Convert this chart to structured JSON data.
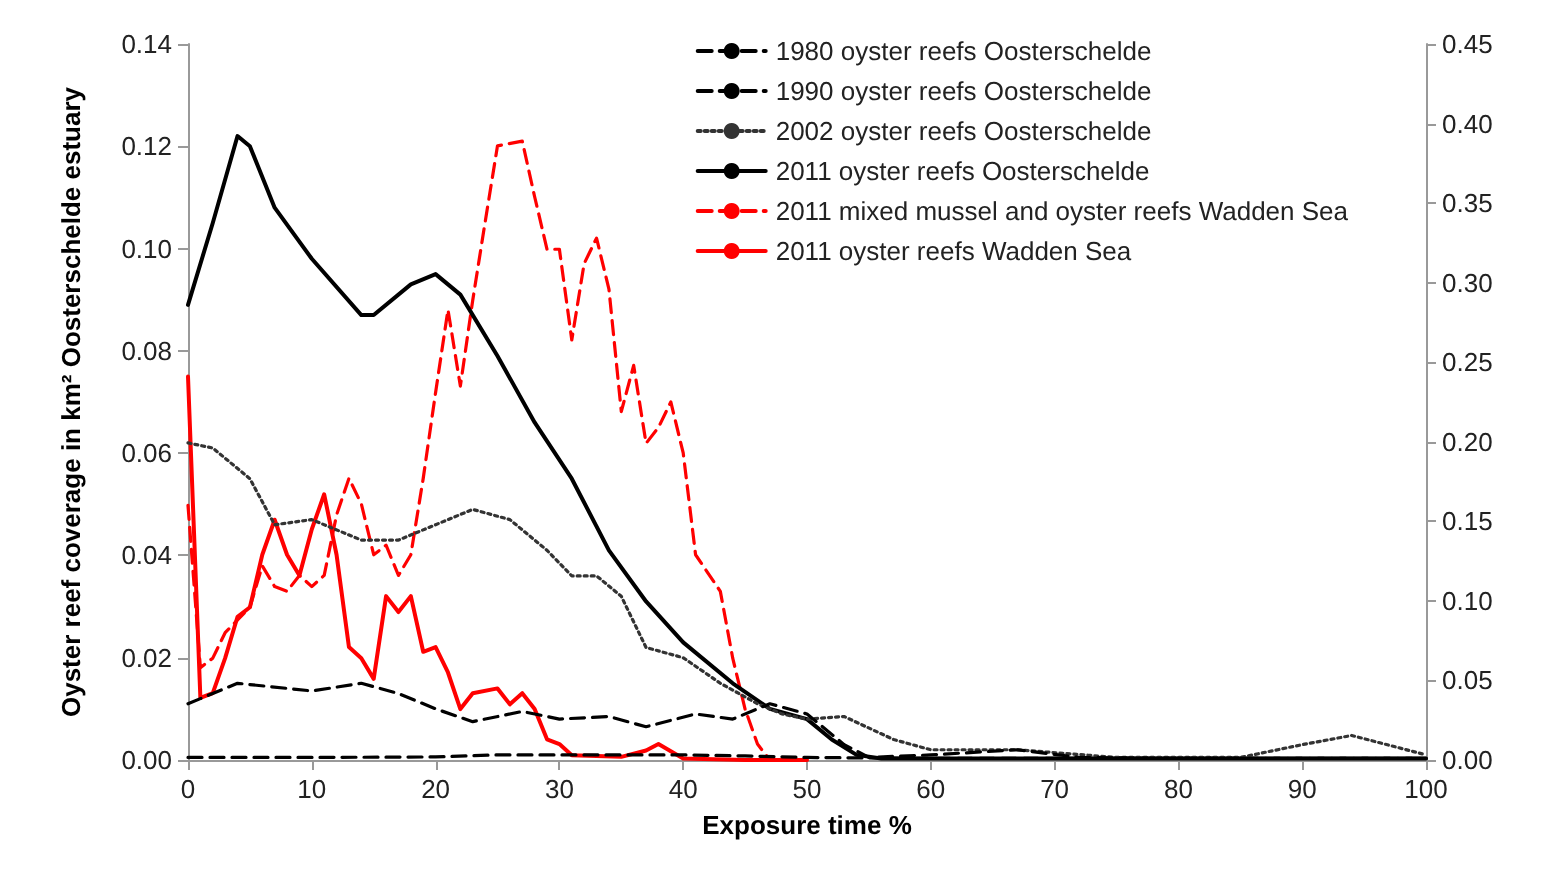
{
  "chart_data": {
    "type": "line",
    "xlabel": "Exposure time %",
    "ylabel": "Oyster reef coverage in km² Oosterschelde estuary",
    "legend": "top right",
    "grid": false,
    "marker": "none",
    "xlim": [
      0,
      100
    ],
    "xticks": [
      0,
      10,
      20,
      30,
      40,
      50,
      60,
      70,
      80,
      90,
      100
    ],
    "ylim": [
      0,
      0.14
    ],
    "yticks": [
      {
        "value": 0,
        "label": "0.00"
      },
      {
        "value": 0.02,
        "label": "0.02"
      },
      {
        "value": 0.04,
        "label": "0.04"
      },
      {
        "value": 0.06,
        "label": "0.06"
      },
      {
        "value": 0.08,
        "label": "0.08"
      },
      {
        "value": 0.1,
        "label": "0.10"
      },
      {
        "value": 0.12,
        "label": "0.12"
      },
      {
        "value": 0.14,
        "label": "0.14"
      }
    ],
    "y2lim": [
      0,
      0.45
    ],
    "y2ticks": [
      {
        "value": 0,
        "label": "0.00"
      },
      {
        "value": 0.05,
        "label": "0.05"
      },
      {
        "value": 0.1,
        "label": "0.10"
      },
      {
        "value": 0.15,
        "label": "0.15"
      },
      {
        "value": 0.2,
        "label": "0.20"
      },
      {
        "value": 0.25,
        "label": "0.25"
      },
      {
        "value": 0.3,
        "label": "0.30"
      },
      {
        "value": 0.35,
        "label": "0.35"
      },
      {
        "value": 0.4,
        "label": "0.40"
      },
      {
        "value": 0.45,
        "label": "0.45"
      }
    ],
    "series": [
      {
        "name": "1980 oyster reefs Oosterschelde",
        "color": "#000000",
        "line_style": "dashed",
        "x": [
          0,
          10,
          20,
          25,
          30,
          35,
          40,
          45,
          50,
          60,
          70,
          80,
          90,
          100
        ],
        "values": [
          0.0005,
          0.0005,
          0.0006,
          0.001,
          0.001,
          0.001,
          0.001,
          0.0008,
          0.0005,
          0.0003,
          0.0003,
          0.0003,
          0.0003,
          0.0003
        ]
      },
      {
        "name": "1990 oyster reefs Oosterschelde",
        "color": "#000000",
        "line_style": "dashed",
        "x": [
          0,
          1,
          4,
          8,
          10,
          14,
          17,
          20,
          23,
          27,
          30,
          34,
          37,
          41,
          44,
          47,
          50,
          53,
          55,
          60,
          67,
          72,
          80,
          100
        ],
        "values": [
          0.011,
          0.012,
          0.015,
          0.014,
          0.0135,
          0.015,
          0.013,
          0.01,
          0.0075,
          0.0095,
          0.008,
          0.0085,
          0.0065,
          0.009,
          0.008,
          0.011,
          0.009,
          0.003,
          0.0005,
          0.001,
          0.002,
          0.0005,
          0.0003,
          0.0003
        ]
      },
      {
        "name": "2002 oyster reefs Oosterschelde",
        "color": "#333333",
        "line_style": "dotted",
        "x": [
          0,
          2,
          5,
          7,
          10,
          14,
          17,
          20,
          23,
          26,
          29,
          31,
          33,
          35,
          37,
          40,
          43,
          46,
          48,
          50,
          53,
          57,
          60,
          67,
          75,
          85,
          90,
          94,
          100
        ],
        "values": [
          0.062,
          0.061,
          0.055,
          0.046,
          0.047,
          0.043,
          0.043,
          0.046,
          0.049,
          0.047,
          0.041,
          0.036,
          0.036,
          0.032,
          0.022,
          0.02,
          0.015,
          0.011,
          0.009,
          0.008,
          0.0085,
          0.004,
          0.002,
          0.002,
          0.0005,
          0.0005,
          0.003,
          0.0048,
          0.001
        ]
      },
      {
        "name": "2011 oyster reefs Oosterschelde",
        "color": "#000000",
        "line_style": "solid",
        "x": [
          0,
          2,
          4,
          5,
          7,
          10,
          14,
          15,
          18,
          20,
          22,
          25,
          28,
          31,
          34,
          37,
          40,
          44,
          47,
          50,
          52,
          54,
          56,
          100
        ],
        "values": [
          0.089,
          0.105,
          0.122,
          0.12,
          0.108,
          0.098,
          0.087,
          0.087,
          0.093,
          0.095,
          0.091,
          0.079,
          0.066,
          0.055,
          0.041,
          0.031,
          0.023,
          0.015,
          0.01,
          0.008,
          0.004,
          0.001,
          0.0003,
          0.0003
        ]
      },
      {
        "name": "2011 mixed mussel and oyster reefs Wadden Sea",
        "color": "#ff0000",
        "line_style": "dashed",
        "axis": "y2",
        "x": [
          0,
          1,
          2,
          3,
          5,
          6,
          7,
          8,
          9,
          10,
          11,
          12,
          13,
          14,
          15,
          16,
          17,
          18,
          19,
          20,
          21,
          22,
          23,
          24,
          25,
          27,
          28,
          29,
          30,
          31,
          32,
          33,
          34,
          35,
          36,
          37,
          38,
          39,
          40,
          41,
          43,
          44,
          45,
          46,
          47,
          50
        ],
        "values": [
          0.16,
          0.058,
          0.064,
          0.08,
          0.096,
          0.122,
          0.109,
          0.106,
          0.116,
          0.109,
          0.116,
          0.154,
          0.177,
          0.161,
          0.129,
          0.135,
          0.116,
          0.129,
          0.177,
          0.231,
          0.283,
          0.235,
          0.289,
          0.338,
          0.386,
          0.389,
          0.354,
          0.321,
          0.321,
          0.264,
          0.312,
          0.328,
          0.296,
          0.219,
          0.248,
          0.199,
          0.209,
          0.225,
          0.193,
          0.129,
          0.106,
          0.064,
          0.032,
          0.01,
          0,
          0
        ]
      },
      {
        "name": "2011 oyster reefs Wadden Sea",
        "color": "#ff0000",
        "line_style": "solid",
        "axis": "y2",
        "x": [
          0,
          1,
          2,
          3,
          4,
          5,
          6,
          7,
          8,
          9,
          10,
          11,
          12,
          13,
          14,
          15,
          16,
          17,
          18,
          19,
          20,
          21,
          22,
          23,
          25,
          26,
          27,
          28,
          29,
          30,
          31,
          35,
          37,
          38,
          40,
          45,
          50
        ],
        "values": [
          0.241,
          0.039,
          0.042,
          0.064,
          0.09,
          0.096,
          0.129,
          0.151,
          0.129,
          0.116,
          0.145,
          0.167,
          0.129,
          0.071,
          0.064,
          0.051,
          0.103,
          0.093,
          0.103,
          0.068,
          0.071,
          0.055,
          0.032,
          0.042,
          0.045,
          0.035,
          0.042,
          0.032,
          0.013,
          0.01,
          0.003,
          0.002,
          0.006,
          0.01,
          0.001,
          0,
          0
        ]
      }
    ]
  }
}
